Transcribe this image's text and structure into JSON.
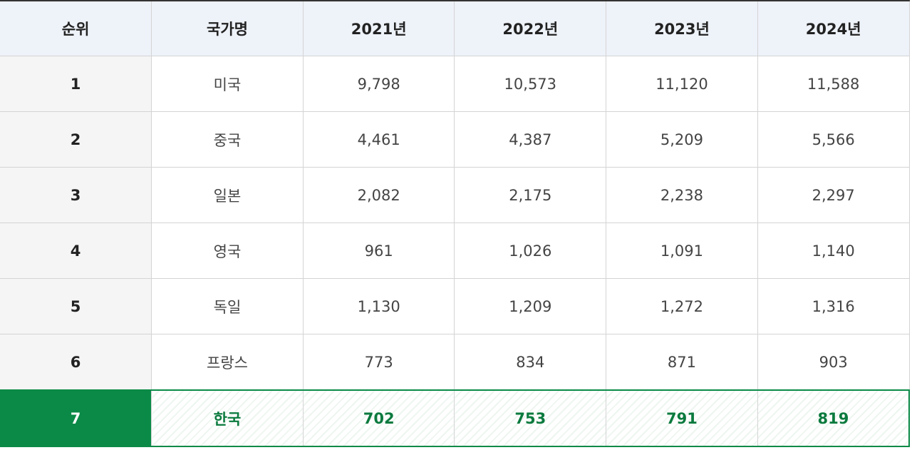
{
  "table": {
    "header": [
      "순위",
      "국가명",
      "2021년",
      "2022년",
      "2023년",
      "2024년"
    ],
    "rows": [
      [
        "1",
        "미국",
        "9,798",
        "10,573",
        "11,120",
        "11,588"
      ],
      [
        "2",
        "중국",
        "4,461",
        "4,387",
        "5,209",
        "5,566"
      ],
      [
        "3",
        "일본",
        "2,082",
        "2,175",
        "2,238",
        "2,297"
      ],
      [
        "4",
        "영국",
        "961",
        "1,026",
        "1,091",
        "1,140"
      ],
      [
        "5",
        "독일",
        "1,130",
        "1,209",
        "1,272",
        "1,316"
      ],
      [
        "6",
        "프랑스",
        "773",
        "834",
        "871",
        "903"
      ],
      [
        "7",
        "한국",
        "702",
        "753",
        "791",
        "819"
      ]
    ],
    "highlight_row": 6
  }
}
